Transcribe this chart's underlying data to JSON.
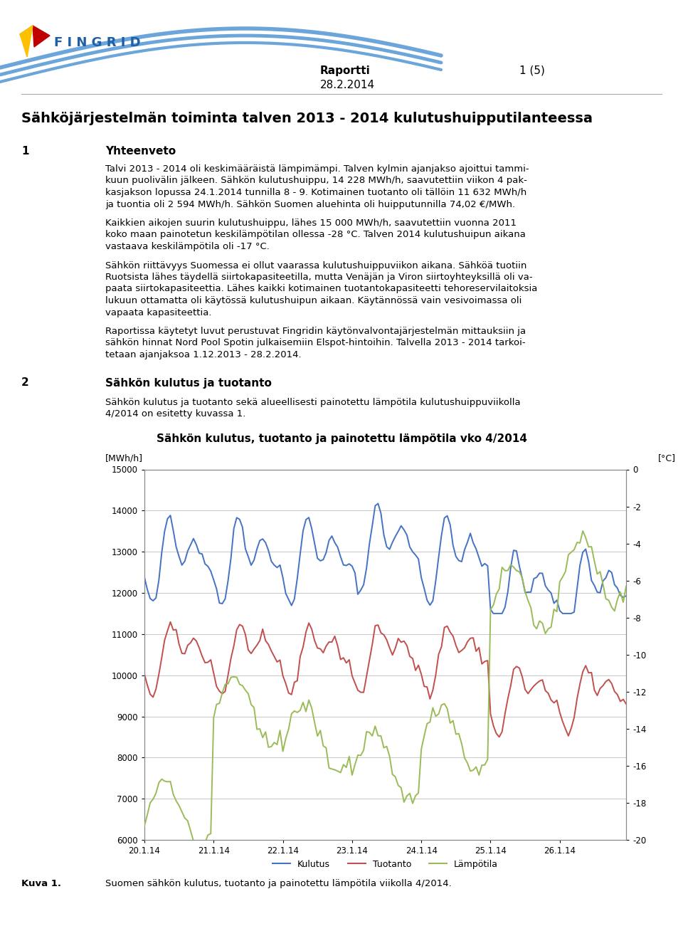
{
  "title_chart": "Sähkön kulutus, tuotanto ja painotettu lämpötila vko 4/2014",
  "ylabel_left": "[MWh/h]",
  "ylabel_right": "[°C]",
  "ylim_left": [
    6000,
    15000
  ],
  "ylim_right": [
    -20,
    0
  ],
  "yticks_left": [
    6000,
    7000,
    8000,
    9000,
    10000,
    11000,
    12000,
    13000,
    14000,
    15000
  ],
  "yticks_right": [
    -20,
    -18,
    -16,
    -14,
    -12,
    -10,
    -8,
    -6,
    -4,
    -2,
    0
  ],
  "xtick_labels": [
    "20.1.14",
    "21.1.14",
    "22.1.14",
    "23.1.14",
    "24.1.14",
    "25.1.14",
    "26.1.14"
  ],
  "legend_labels": [
    "Kulutus",
    "Tuotanto",
    "Lämpötila"
  ],
  "line_colors": [
    "#4472C4",
    "#C0504D",
    "#9BBB59"
  ],
  "background_color": "#FFFFFF",
  "grid_color": "#C0C0C0",
  "page_header": "Raportti",
  "page_number": "1 (5)",
  "page_date": "28.2.2014",
  "doc_title": "Sähköjärjestelmän toiminta talven 2013 - 2014 kulutushuipputilanteessa",
  "section1_num": "1",
  "section1_title": "Yhteenveto",
  "section2_num": "2",
  "section2_title": "Sähkön kulutus ja tuotanto",
  "section2_text_line1": "Sähkön kulutus ja tuotanto sekä alueellisesti painotettu lämpötila kulutushuippuviikolla",
  "section2_text_line2": "4/2014 on esitetty kuvassa 1.",
  "caption_label": "Kuva 1.",
  "caption_text": "Suomen sähkön kulutus, tuotanto ja painotettu lämpötila viikolla 4/2014.",
  "header_line_color": "#AAAAAA",
  "wave_color": "#5B9BD5",
  "fingrid_text_color": "#1F5FA6",
  "text_color": "#1A1A1A",
  "para1_lines": [
    "Talvi 2013 - 2014 oli keskimääräistä lämpimämpi. Talven kylmin ajanjakso ajoittui tammi-",
    "kuun puolivälin jälkeen. Sähkön kulutushuippu, 14 228 MWh/h, saavutettiin viikon 4 pak-",
    "kasjakson lopussa 24.1.2014 tunnilla 8 - 9. Kotimainen tuotanto oli tällöin 11 632 MWh/h",
    "ja tuontia oli 2 594 MWh/h. Sähkön Suomen aluehinta oli huipputunnilla 74,02 €/MWh."
  ],
  "para2_lines": [
    "Kaikkien aikojen suurin kulutushuippu, lähes 15 000 MWh/h, saavutettiin vuonna 2011",
    "koko maan painotetun keskilämpötilan ollessa -28 °C. Talven 2014 kulutushuipun aikana",
    "vastaava keskilämpötila oli -17 °C."
  ],
  "para3_lines": [
    "Sähkön riittävyys Suomessa ei ollut vaarassa kulutushuippuviikon aikana. Sähköä tuotiin",
    "Ruotsista lähes täydellä siirtokapasiteetilla, mutta Venäjän ja Viron siirtoyhteyksillä oli va-",
    "paata siirtokapasiteettia. Lähes kaikki kotimainen tuotantokapasiteetti tehoreservilaitoksia",
    "lukuun ottamatta oli käytössä kulutushuipun aikaan. Käytännössä vain vesivoimassa oli",
    "vapaata kapasiteettia."
  ],
  "para4_lines": [
    "Raportissa käytetyt luvut perustuvat Fingridin käytönvalvontajärjestelmän mittauksiin ja",
    "sähkön hinnat Nord Pool Spotin julkaisemiin Elspot-hintoihin. Talvella 2013 - 2014 tarkoi-",
    "tetaan ajanjaksoa 1.12.2013 - 28.2.2014."
  ]
}
